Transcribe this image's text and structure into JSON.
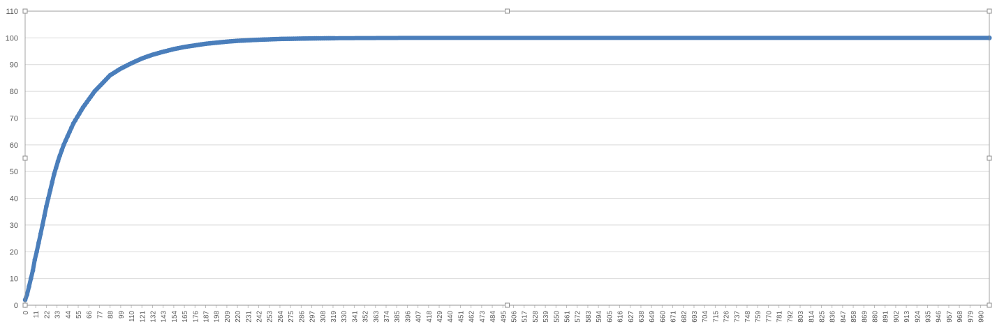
{
  "chart_data": {
    "type": "line",
    "title": "",
    "xlabel": "",
    "ylabel": "",
    "ylim": [
      0,
      110
    ],
    "y_ticks": [
      "0",
      "10",
      "20",
      "30",
      "40",
      "50",
      "60",
      "70",
      "80",
      "90",
      "100",
      "110"
    ],
    "x_range": [
      0,
      999
    ],
    "x_tick_step": 11,
    "x_tick_values": [
      0,
      11,
      22,
      33,
      44,
      55,
      66,
      77,
      88,
      99,
      110,
      121,
      132,
      143,
      154,
      165,
      176,
      187,
      198,
      209,
      220,
      231,
      242,
      253,
      264,
      275,
      286,
      297,
      308,
      319,
      330,
      341,
      352,
      363,
      374,
      385,
      396,
      407,
      418,
      429,
      440,
      451,
      462,
      473,
      484,
      495,
      506,
      517,
      528,
      539,
      550,
      561,
      572,
      583,
      594,
      605,
      616,
      627,
      638,
      649,
      660,
      671,
      682,
      693,
      704,
      715,
      726,
      737,
      748,
      759,
      770,
      781,
      792,
      803,
      814,
      825,
      836,
      847,
      858,
      869,
      880,
      891,
      902,
      913,
      924,
      935,
      946,
      957,
      968,
      979,
      990
    ],
    "x_tick_labels": [
      "0",
      "11",
      "22",
      "33",
      "44",
      "55",
      "66",
      "77",
      "88",
      "99",
      "110",
      "121",
      "132",
      "143",
      "154",
      "165",
      "176",
      "187",
      "198",
      "209",
      "220",
      "231",
      "242",
      "253",
      "264",
      "275",
      "286",
      "297",
      "308",
      "319",
      "330",
      "341",
      "352",
      "363",
      "374",
      "385",
      "396",
      "407",
      "418",
      "429",
      "440",
      "451",
      "462",
      "473",
      "484",
      "495",
      "506",
      "517",
      "528",
      "539",
      "550",
      "561",
      "572",
      "583",
      "594",
      "605",
      "616",
      "627",
      "638",
      "649",
      "660",
      "671",
      "682",
      "693",
      "704",
      "715",
      "726",
      "737",
      "748",
      "759",
      "770",
      "781",
      "792",
      "803",
      "814",
      "825",
      "836",
      "847",
      "858",
      "869",
      "880",
      "891",
      "902",
      "913",
      "924",
      "935",
      "946",
      "957",
      "968",
      "979",
      "990"
    ],
    "grid": true,
    "legend": "none",
    "series": [
      {
        "marker_color": "#4A7EBB",
        "x": [
          0,
          2,
          4,
          6,
          8,
          10,
          12,
          15,
          18,
          22,
          26,
          30,
          35,
          40,
          45,
          50,
          55,
          60,
          66,
          72,
          80,
          88,
          99,
          110,
          121,
          132,
          143,
          154,
          165,
          176,
          187,
          198,
          209,
          220,
          242,
          264,
          297,
          330,
          400,
          500,
          600,
          700,
          800,
          900,
          999
        ],
        "y": [
          2,
          4,
          7,
          10,
          13,
          17,
          20,
          25,
          30,
          37,
          43,
          49,
          55,
          60,
          64,
          68,
          71,
          74,
          77,
          80,
          83,
          86,
          88.5,
          90.5,
          92.3,
          93.7,
          94.8,
          95.8,
          96.6,
          97.2,
          97.8,
          98.2,
          98.6,
          98.9,
          99.3,
          99.6,
          99.8,
          99.9,
          100,
          100,
          100,
          100,
          100,
          100,
          100
        ]
      }
    ]
  }
}
